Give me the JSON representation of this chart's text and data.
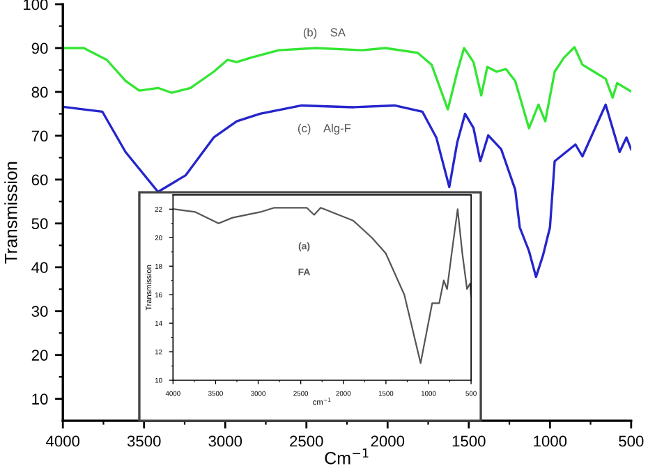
{
  "chart_data": [
    {
      "type": "line",
      "xlabel": "Cm$^{−1}$",
      "ylabel": "Transmission",
      "xlim": [
        4000,
        500
      ],
      "ylim": [
        5,
        100
      ],
      "xticks": [
        4000,
        3500,
        3000,
        2500,
        2000,
        1500,
        1000,
        500
      ],
      "yticks": [
        10,
        20,
        30,
        40,
        50,
        60,
        70,
        80,
        90,
        100
      ],
      "grid": false,
      "legend": false,
      "marker": "none",
      "line_style": "solid",
      "annotations": [
        "(b)    SA",
        "(c)    Alg-F"
      ],
      "series": [
        {
          "color": "#33e633",
          "x": [
            4000,
            3871,
            3729,
            3614,
            3529,
            3414,
            3329,
            3214,
            3071,
            2986,
            2929,
            2843,
            2671,
            2443,
            2157,
            2014,
            1814,
            1729,
            1629,
            1571,
            1529,
            1471,
            1423,
            1386,
            1329,
            1271,
            1214,
            1129,
            1071,
            1029,
            971,
            914,
            849,
            800,
            729,
            657,
            614,
            586,
            500
          ],
          "values": [
            90,
            90,
            87.3,
            82.5,
            80.3,
            80.9,
            79.8,
            80.9,
            84.6,
            87.3,
            86.8,
            87.8,
            89.5,
            90,
            89.5,
            90,
            88.9,
            86.2,
            76,
            84.6,
            90,
            86.8,
            79.2,
            85.7,
            84.6,
            85.2,
            82.5,
            71.7,
            77.1,
            73.3,
            84.6,
            87.8,
            90.2,
            86.2,
            84.6,
            83,
            78.7,
            82,
            80.1
          ]
        },
        {
          "color": "#2525cc",
          "x": [
            4000,
            3757,
            3614,
            3414,
            3243,
            3071,
            2929,
            2786,
            2529,
            2214,
            1957,
            1786,
            1700,
            1620,
            1571,
            1523,
            1471,
            1429,
            1380,
            1300,
            1214,
            1186,
            1129,
            1086,
            1043,
            1000,
            971,
            843,
            800,
            657,
            571,
            529,
            500
          ],
          "values": [
            76.6,
            75.5,
            66.3,
            57.2,
            61,
            69.6,
            73.3,
            75,
            76.9,
            76.5,
            76.9,
            75.5,
            69.6,
            58.3,
            68.5,
            75,
            71.8,
            64.2,
            70.1,
            66.9,
            57.7,
            49.1,
            43.7,
            37.8,
            42.7,
            49.1,
            64.2,
            68,
            65.3,
            77.1,
            66.3,
            69.6,
            66.9
          ]
        }
      ]
    },
    {
      "type": "line",
      "xlabel": "cm$^{−1}$",
      "ylabel": "Transmission",
      "xlim": [
        4000,
        500
      ],
      "ylim": [
        10,
        23
      ],
      "xticks": [
        4000,
        3500,
        3000,
        2500,
        2000,
        1500,
        1000,
        500
      ],
      "yticks": [
        10,
        12,
        14,
        16,
        18,
        20,
        22
      ],
      "grid": false,
      "legend": false,
      "marker": "none",
      "line_style": "solid",
      "annotations": [
        "(a)",
        "FA"
      ],
      "series": [
        {
          "color": "#555555",
          "x": [
            3984,
            3738,
            3465,
            3302,
            2974,
            2811,
            2430,
            2343,
            2266,
            1885,
            1665,
            1502,
            1284,
            1093,
            957,
            875,
            821,
            782,
            728,
            658,
            603,
            548,
            511,
            500
          ],
          "values": [
            22.0,
            21.8,
            21.0,
            21.4,
            21.8,
            22.1,
            22.1,
            21.6,
            22.1,
            21.2,
            20.0,
            18.9,
            16.0,
            11.2,
            15.4,
            15.4,
            17.0,
            16.4,
            18.9,
            22.0,
            18.9,
            16.4,
            16.8,
            15.9
          ]
        }
      ]
    }
  ]
}
